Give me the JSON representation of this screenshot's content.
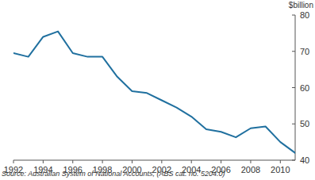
{
  "chart_data": {
    "type": "line",
    "y_label": "$billion",
    "source": "Source: Australian System of National Accounts, (ABS cat. no. 5204.0)",
    "x": [
      1992,
      1993,
      1994,
      1995,
      1996,
      1997,
      1998,
      1999,
      2000,
      2001,
      2002,
      2003,
      2004,
      2005,
      2006,
      2007,
      2008,
      2009,
      2010,
      2011
    ],
    "values": [
      69.5,
      68.5,
      74,
      75.5,
      69.5,
      68.5,
      68.5,
      63,
      59,
      58.5,
      56.5,
      54.5,
      52,
      48.5,
      47.8,
      46.3,
      48.8,
      49.3,
      45,
      42
    ],
    "color": "#20709f",
    "xlim": [
      1992,
      2011
    ],
    "xticks": [
      1992,
      1994,
      1996,
      1998,
      2000,
      2002,
      2004,
      2006,
      2008,
      2010
    ],
    "ylim": [
      40,
      80
    ],
    "yticks": [
      40,
      50,
      60,
      70,
      80
    ],
    "grid": false
  }
}
